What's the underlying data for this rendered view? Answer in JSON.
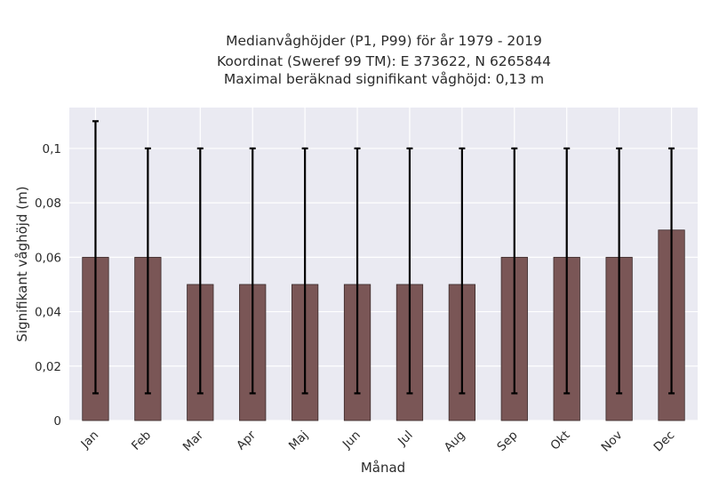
{
  "chart_data": {
    "type": "bar",
    "title_lines": [
      "Medianvåghöjder (P1, P99) för år 1979 - 2019",
      "Koordinat (Sweref 99 TM): E 373622, N 6265844",
      "Maximal beräknad signifikant våghöjd: 0,13 m"
    ],
    "xlabel": "Månad",
    "ylabel": "Signifikant våghöjd (m)",
    "categories": [
      "Jan",
      "Feb",
      "Mar",
      "Apr",
      "Maj",
      "Jun",
      "Jul",
      "Aug",
      "Sep",
      "Okt",
      "Nov",
      "Dec"
    ],
    "values": [
      0.06,
      0.06,
      0.05,
      0.05,
      0.05,
      0.05,
      0.05,
      0.05,
      0.06,
      0.06,
      0.06,
      0.07
    ],
    "err_low": [
      0.01,
      0.01,
      0.01,
      0.01,
      0.01,
      0.01,
      0.01,
      0.01,
      0.01,
      0.01,
      0.01,
      0.01
    ],
    "err_high": [
      0.11,
      0.1,
      0.1,
      0.1,
      0.1,
      0.1,
      0.1,
      0.1,
      0.1,
      0.1,
      0.1,
      0.1
    ],
    "yticks": [
      0,
      0.02,
      0.04,
      0.06,
      0.08,
      0.1
    ],
    "ytick_labels": [
      "0",
      "0,02",
      "0,04",
      "0,06",
      "0,08",
      "0,1"
    ],
    "ylim": [
      0,
      0.115
    ],
    "grid": true,
    "colors": {
      "bar": "#7a5656",
      "bar_edge": "#3a2a2a",
      "plot_bg": "#eaeaf2",
      "grid": "#ffffff",
      "error": "#000000"
    }
  }
}
